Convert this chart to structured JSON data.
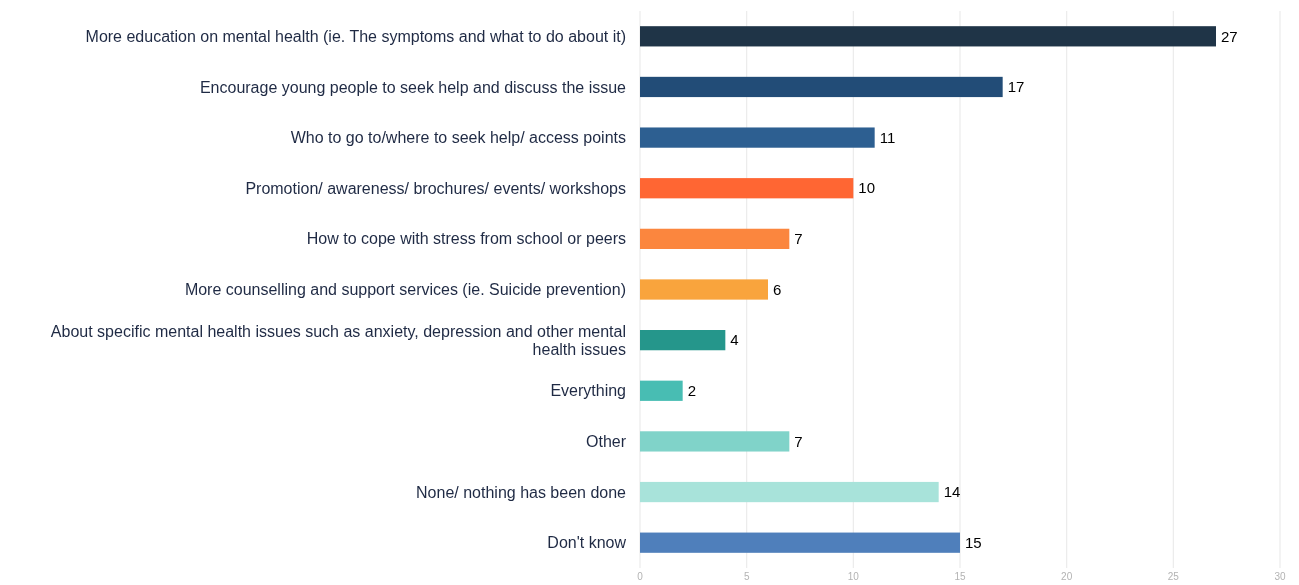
{
  "chart_data": {
    "type": "bar",
    "orientation": "horizontal",
    "categories": [
      "More education on mental health (ie. The symptoms and what to do about it)",
      "Encourage young people to seek help and discuss the issue",
      "Who to go to/where to seek help/ access points",
      "Promotion/ awareness/ brochures/ events/ workshops",
      "How to cope with stress from school or peers",
      "More counselling and support services (ie. Suicide prevention)",
      "About specific mental health issues such as anxiety, depression and other mental health issues",
      "Everything",
      "Other",
      "None/ nothing has been done",
      "Don't know"
    ],
    "values": [
      27,
      17,
      11,
      10,
      7,
      6,
      4,
      2,
      7,
      14,
      15
    ],
    "colors": [
      "#1f3447",
      "#224c77",
      "#2d5f91",
      "#ff6633",
      "#fb863e",
      "#f9a43d",
      "#25968b",
      "#48bdb3",
      "#80d3c9",
      "#a8e3da",
      "#4f7fbb"
    ],
    "xlim": [
      0,
      30
    ],
    "xticks": [
      0,
      5,
      10,
      15,
      20,
      25,
      30
    ],
    "grid": "x",
    "data_labels": true
  }
}
